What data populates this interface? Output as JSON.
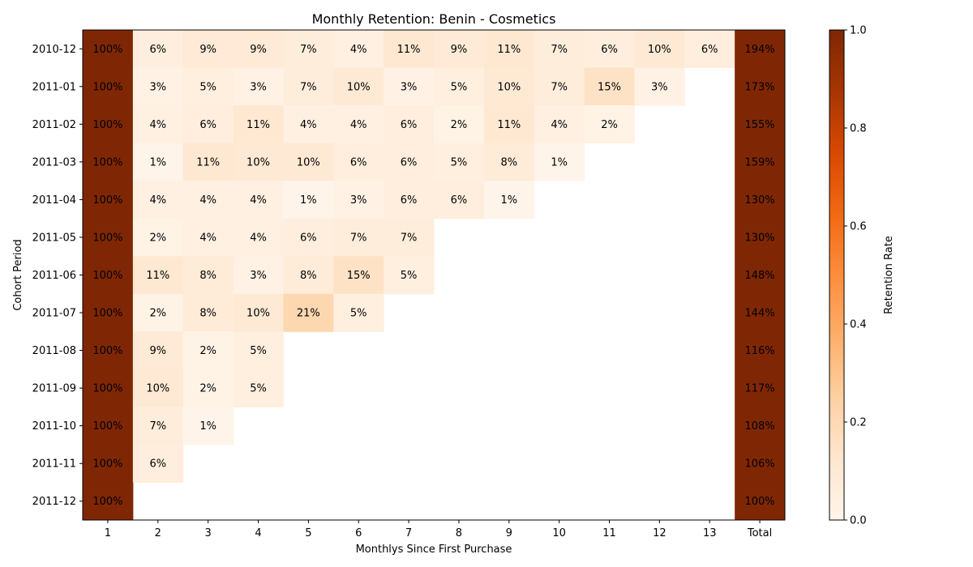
{
  "chart_data": {
    "type": "heatmap",
    "title": "Monthly Retention: Benin - Cosmetics",
    "xlabel": "Monthlys Since First Purchase",
    "ylabel": "Cohort Period",
    "colorbar_label": "Retention Rate",
    "colorbar_ticks": [
      "0.0",
      "0.2",
      "0.4",
      "0.6",
      "0.8",
      "1.0"
    ],
    "colorbar_range": [
      0,
      1
    ],
    "colormap": "Oranges",
    "columns": [
      "1",
      "2",
      "3",
      "4",
      "5",
      "6",
      "7",
      "8",
      "9",
      "10",
      "11",
      "12",
      "13",
      "Total"
    ],
    "rows": [
      "2010-12",
      "2011-01",
      "2011-02",
      "2011-03",
      "2011-04",
      "2011-05",
      "2011-06",
      "2011-07",
      "2011-08",
      "2011-09",
      "2011-10",
      "2011-11",
      "2011-12"
    ],
    "values": [
      [
        100,
        6,
        9,
        9,
        7,
        4,
        11,
        9,
        11,
        7,
        6,
        10,
        6,
        194
      ],
      [
        100,
        3,
        5,
        3,
        7,
        10,
        3,
        5,
        10,
        7,
        15,
        3,
        null,
        173
      ],
      [
        100,
        4,
        6,
        11,
        4,
        4,
        6,
        2,
        11,
        4,
        2,
        null,
        null,
        155
      ],
      [
        100,
        1,
        11,
        10,
        10,
        6,
        6,
        5,
        8,
        1,
        null,
        null,
        null,
        159
      ],
      [
        100,
        4,
        4,
        4,
        1,
        3,
        6,
        6,
        1,
        null,
        null,
        null,
        null,
        130
      ],
      [
        100,
        2,
        4,
        4,
        6,
        7,
        7,
        null,
        null,
        null,
        null,
        null,
        null,
        130
      ],
      [
        100,
        11,
        8,
        3,
        8,
        15,
        5,
        null,
        null,
        null,
        null,
        null,
        null,
        148
      ],
      [
        100,
        2,
        8,
        10,
        21,
        5,
        null,
        null,
        null,
        null,
        null,
        null,
        null,
        144
      ],
      [
        100,
        9,
        2,
        5,
        null,
        null,
        null,
        null,
        null,
        null,
        null,
        null,
        null,
        116
      ],
      [
        100,
        10,
        2,
        5,
        null,
        null,
        null,
        null,
        null,
        null,
        null,
        null,
        null,
        117
      ],
      [
        100,
        7,
        1,
        null,
        null,
        null,
        null,
        null,
        null,
        null,
        null,
        null,
        null,
        108
      ],
      [
        100,
        6,
        null,
        null,
        null,
        null,
        null,
        null,
        null,
        null,
        null,
        null,
        null,
        106
      ],
      [
        100,
        null,
        null,
        null,
        null,
        null,
        null,
        null,
        null,
        null,
        null,
        null,
        null,
        100
      ]
    ],
    "value_suffix": "%",
    "grid": false
  }
}
